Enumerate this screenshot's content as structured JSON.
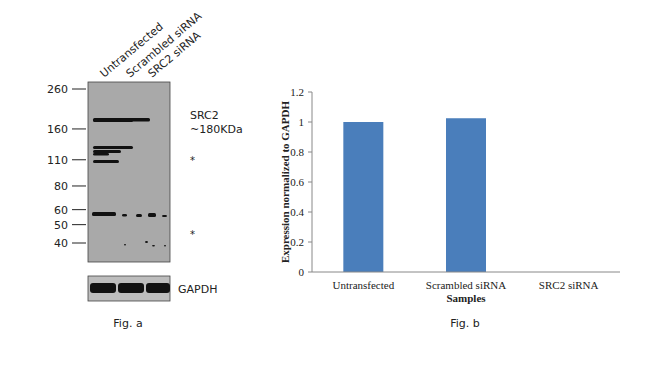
{
  "figure_a": {
    "caption": "Fig. a",
    "lanes": [
      "Untransfected",
      "Scrambled siRNA",
      "SRC2 siRNA"
    ],
    "markers": [
      260,
      160,
      110,
      80,
      60,
      50,
      40
    ],
    "target_label": "SRC2",
    "target_size": "~180KDa",
    "nonspecific_marks": [
      "*",
      "*"
    ],
    "loading_control": "GAPDH"
  },
  "chart_data": {
    "type": "bar",
    "caption": "Fig. b",
    "x_label": "Samples",
    "y_label": "Expression normalized to GAPDH",
    "categories": [
      "Untransfected",
      "Scrambled siRNA",
      "SRC2 siRNA"
    ],
    "values": [
      1.0,
      1.025,
      0
    ],
    "color": "#4a7ebb",
    "ylim": [
      0,
      1.2
    ],
    "yticks": [
      0,
      0.2,
      0.4,
      0.6,
      0.8,
      1,
      1.2
    ],
    "grid": false
  }
}
